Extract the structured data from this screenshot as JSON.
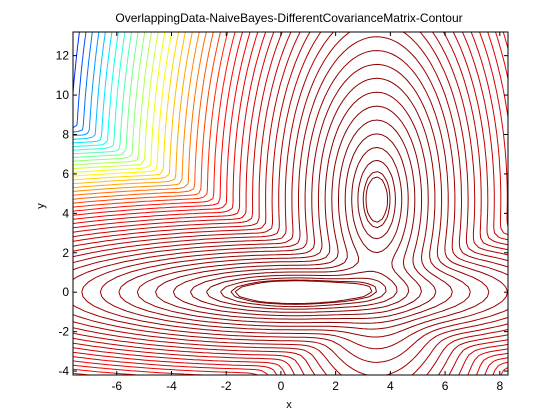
{
  "chart_data": {
    "type": "contour",
    "title": "OverlappingData-NaiveBayes-DifferentCovarianceMatrix-Contour",
    "xlabel": "x",
    "ylabel": "y",
    "xlim": [
      -7.6,
      8.3
    ],
    "ylim": [
      -4.2,
      13.2
    ],
    "x_ticks": [
      -6,
      -4,
      -2,
      0,
      2,
      4,
      6,
      8
    ],
    "y_ticks": [
      -4,
      -2,
      0,
      2,
      4,
      6,
      8,
      10,
      12
    ],
    "x_tick_labels": [
      "-6",
      "-4",
      "-2",
      "0",
      "2",
      "4",
      "6",
      "8"
    ],
    "y_tick_labels": [
      "-4",
      "-2",
      "0",
      "2",
      "4",
      "6",
      "8",
      "10",
      "12"
    ],
    "colormap": [
      "#800000",
      "#ff0000",
      "#ffff00",
      "#00ffff",
      "#0000ff"
    ],
    "components": [
      {
        "mean": [
          0.5,
          0.0
        ],
        "std": [
          2.6,
          0.7
        ]
      },
      {
        "mean": [
          3.5,
          4.7
        ],
        "std": [
          0.9,
          2.6
        ]
      }
    ],
    "contour_levels": 48
  }
}
